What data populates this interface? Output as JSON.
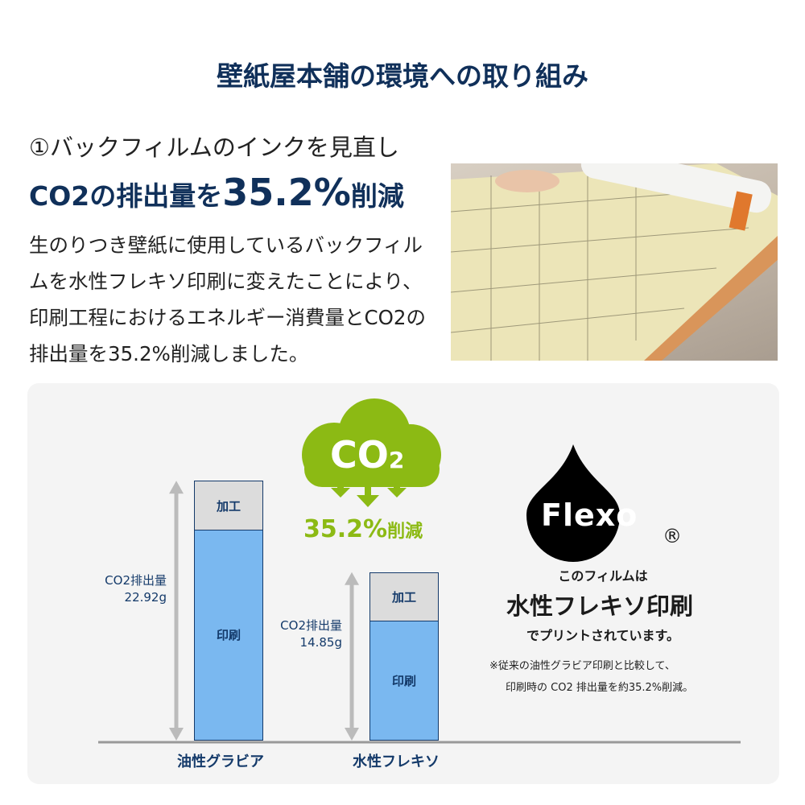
{
  "title": "壁紙屋本舗の環境への取り組み",
  "section": {
    "heading_line1": "①バックフィルムのインクを見直し",
    "heading_line2_prefix": "CO2の排出量を",
    "heading_line2_big": "35.2%",
    "heading_line2_suffix": "削減",
    "body": "生のりつき壁紙に使用しているバックフィルムを水性フレキソ印刷に変えたことにより、印刷工程におけるエネルギー消費量とCO2の排出量を35.2%削減しました。"
  },
  "cloud": {
    "text": "CO",
    "sub": "2",
    "reduction": "35.2%",
    "reduction_suffix": "削減"
  },
  "flexo": {
    "logo": "Flexo",
    "registered": "®",
    "line1": "このフィルムは",
    "line2": "水性フレキソ印刷",
    "line3": "でプリントされています。",
    "note1": "※従来の油性グラビア印刷と比較して、",
    "note2": "印刷時の CO2 排出量を約35.2%削減。"
  },
  "colors": {
    "title": "#10305a",
    "print": "#7ab8f0",
    "process": "#dcdcdc",
    "green": "#8cba14"
  },
  "chart_data": {
    "type": "bar",
    "stacked": true,
    "categories": [
      "油性グラビア",
      "水性フレキソ"
    ],
    "series": [
      {
        "name": "印刷",
        "values": [
          18.6,
          10.55
        ]
      },
      {
        "name": "加工",
        "values": [
          4.3,
          4.3
        ]
      }
    ],
    "totals_label": "CO2排出量",
    "totals": [
      "22.92g",
      "14.85g"
    ],
    "total_values": [
      22.92,
      14.85
    ],
    "ylim": [
      0,
      22.92
    ]
  }
}
